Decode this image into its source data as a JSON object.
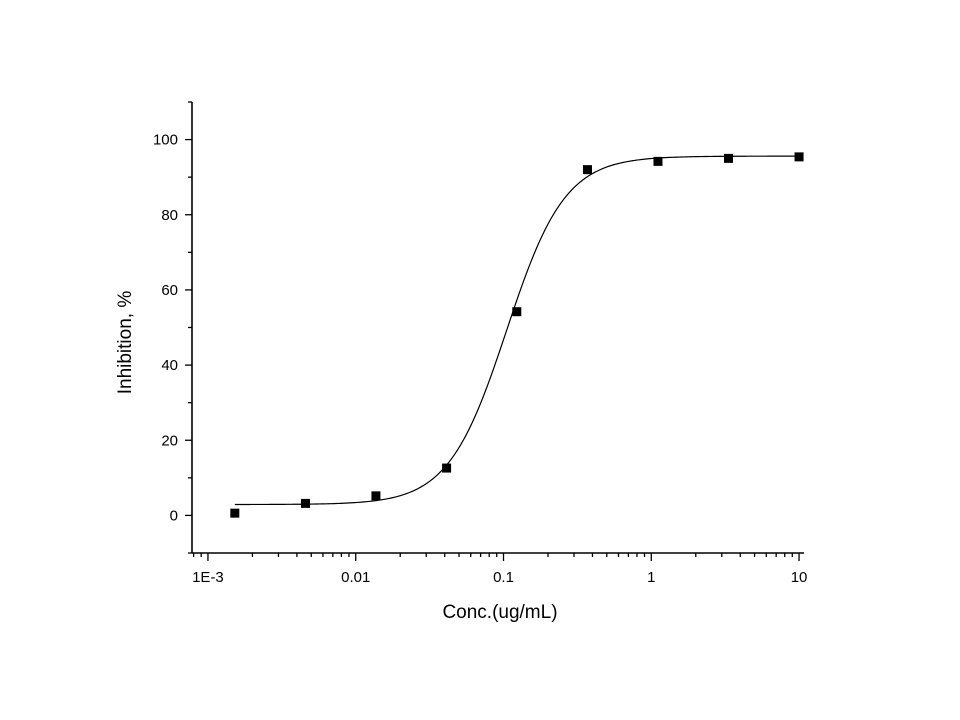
{
  "chart_data": {
    "type": "scatter",
    "title": "",
    "xlabel": "Conc.(ug/mL)",
    "ylabel": "Inhibition, %",
    "x_scale": "log",
    "xlim": [
      0.00078,
      10.8
    ],
    "ylim": [
      -10,
      110
    ],
    "x_ticks": [
      {
        "value": 0.001,
        "label": "1E-3"
      },
      {
        "value": 0.01,
        "label": "0.01"
      },
      {
        "value": 0.1,
        "label": "0.1"
      },
      {
        "value": 1,
        "label": "1"
      },
      {
        "value": 10,
        "label": "10"
      }
    ],
    "y_ticks": [
      {
        "value": 0,
        "label": "0"
      },
      {
        "value": 20,
        "label": "20"
      },
      {
        "value": 40,
        "label": "40"
      },
      {
        "value": 60,
        "label": "60"
      },
      {
        "value": 80,
        "label": "80"
      },
      {
        "value": 100,
        "label": "100"
      }
    ],
    "y_minor_ticks": [
      -10,
      10,
      30,
      50,
      70,
      90,
      110
    ],
    "grid": false,
    "series": [
      {
        "marker": "square",
        "color": "#000000",
        "x": [
          0.00152,
          0.00457,
          0.0137,
          0.0412,
          0.123,
          0.37,
          1.11,
          3.33,
          10.0
        ],
        "y": [
          0.6,
          3.2,
          5.2,
          12.6,
          54.2,
          92.0,
          94.2,
          95.0,
          95.4
        ]
      }
    ],
    "fit_curve": {
      "model": "4PL",
      "bottom": 2.9,
      "top": 95.6,
      "ec50": 0.105,
      "hill": 2.2,
      "x_range": [
        0.00152,
        10.0
      ],
      "color": "#000000"
    }
  }
}
